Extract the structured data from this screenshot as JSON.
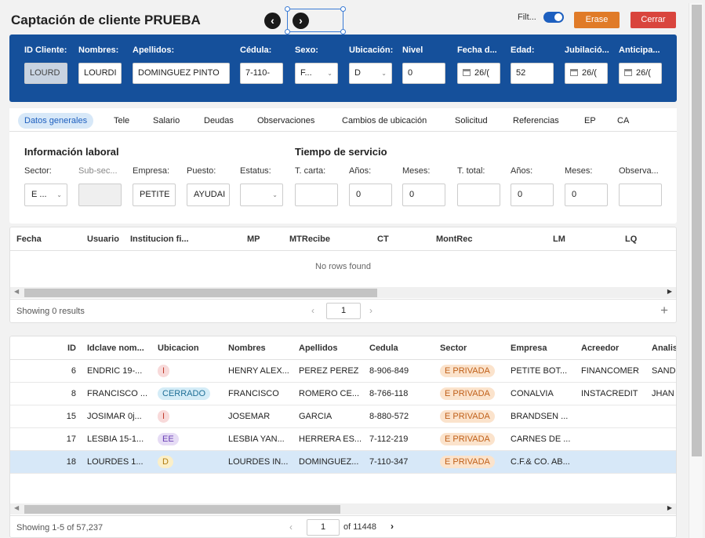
{
  "header": {
    "title": "Captación de cliente PRUEBA",
    "prev_icon": "chevron-left-icon",
    "next_icon": "chevron-right-icon",
    "filter_label": "Filt...",
    "erase_label": "Erase",
    "close_label": "Cerrar",
    "colors": {
      "erase": "#e07b28",
      "close": "#d9453d",
      "panel": "#15509b"
    }
  },
  "client": {
    "labels": [
      "ID Cliente:",
      "Nombres:",
      "Apellidos:",
      "Cédula:",
      "Sexo:",
      "Ubicación:",
      "Nivel",
      "Fecha d...",
      "Edad:",
      "Jubilació...",
      "Anticipa..."
    ],
    "values": {
      "id": "LOURD",
      "nombres": "LOURDI",
      "apellidos": "DOMINGUEZ PINTO",
      "cedula": "7-110-",
      "sexo": "F...",
      "ubicacion": "D",
      "nivel": "0",
      "fecha": "26/(",
      "edad": "52",
      "jubilacion": "26/(",
      "anticipa": "26/("
    }
  },
  "tabs": [
    "Datos generales",
    "Tele",
    "Salario",
    "Deudas",
    "Observaciones",
    "Cambios de ubicación",
    "Solicitud",
    "Referencias",
    "EP",
    "CA"
  ],
  "info": {
    "laboral_title": "Información laboral",
    "tiempo_title": "Tiempo de servicio",
    "labels": [
      "Sector:",
      "Sub-sec...",
      "Empresa:",
      "Puesto:",
      "Estatus:",
      "T. carta:",
      "Años:",
      "Meses:",
      "T. total:",
      "Años:",
      "Meses:",
      "Observa..."
    ],
    "values": {
      "sector": "E ...",
      "empresa": "PETITE",
      "puesto": "AYUDAI",
      "anios1": "0",
      "meses1": "0",
      "anios2": "0",
      "meses2": "0"
    }
  },
  "grid1": {
    "columns": [
      "Fecha",
      "Usuario",
      "Institucion fi...",
      "MP",
      "MTRecibe",
      "CT",
      "MontRec",
      "LM",
      "LQ"
    ],
    "empty_text": "No rows found",
    "showing": "Showing 0 results",
    "page": "1"
  },
  "grid2": {
    "columns": [
      "ID",
      "Idclave nom...",
      "Ubicacion",
      "Nombres",
      "Apellidos",
      "Cedula",
      "Sector",
      "Empresa",
      "Acreedor",
      "Analis"
    ],
    "rows": [
      {
        "id": "6",
        "clave": "ENDRIC 19-...",
        "ubic": "I",
        "nombres": "HENRY ALEX...",
        "apellidos": "PEREZ PEREZ",
        "cedula": "8-906-849",
        "sector": "E PRIVADA",
        "empresa": "PETITE BOT...",
        "acreedor": "FINANCOMER",
        "analis": "SAND"
      },
      {
        "id": "8",
        "clave": "FRANCISCO ...",
        "ubic": "CERRADO",
        "nombres": "FRANCISCO",
        "apellidos": "ROMERO CE...",
        "cedula": "8-766-118",
        "sector": "E PRIVADA",
        "empresa": "CONALVIA",
        "acreedor": "INSTACREDIT",
        "analis": "JHAN"
      },
      {
        "id": "15",
        "clave": "JOSIMAR 0j...",
        "ubic": "I",
        "nombres": "JOSEMAR",
        "apellidos": "GARCIA",
        "cedula": "8-880-572",
        "sector": "E PRIVADA",
        "empresa": "BRANDSEN ...",
        "acreedor": "",
        "analis": ""
      },
      {
        "id": "17",
        "clave": "LESBIA 15-1...",
        "ubic": "EE",
        "nombres": "LESBIA YAN...",
        "apellidos": "HERRERA ES...",
        "cedula": "7-112-219",
        "sector": "E PRIVADA",
        "empresa": "CARNES DE ...",
        "acreedor": "",
        "analis": ""
      },
      {
        "id": "18",
        "clave": "LOURDES 1...",
        "ubic": "D",
        "nombres": "LOURDES IN...",
        "apellidos": "DOMINGUEZ...",
        "cedula": "7-110-347",
        "sector": "E PRIVADA",
        "empresa": "C.F.& CO. AB...",
        "acreedor": "",
        "analis": ""
      }
    ],
    "showing": "Showing 1-5 of 57,237",
    "page": "1",
    "of_pages": "of 11448"
  }
}
